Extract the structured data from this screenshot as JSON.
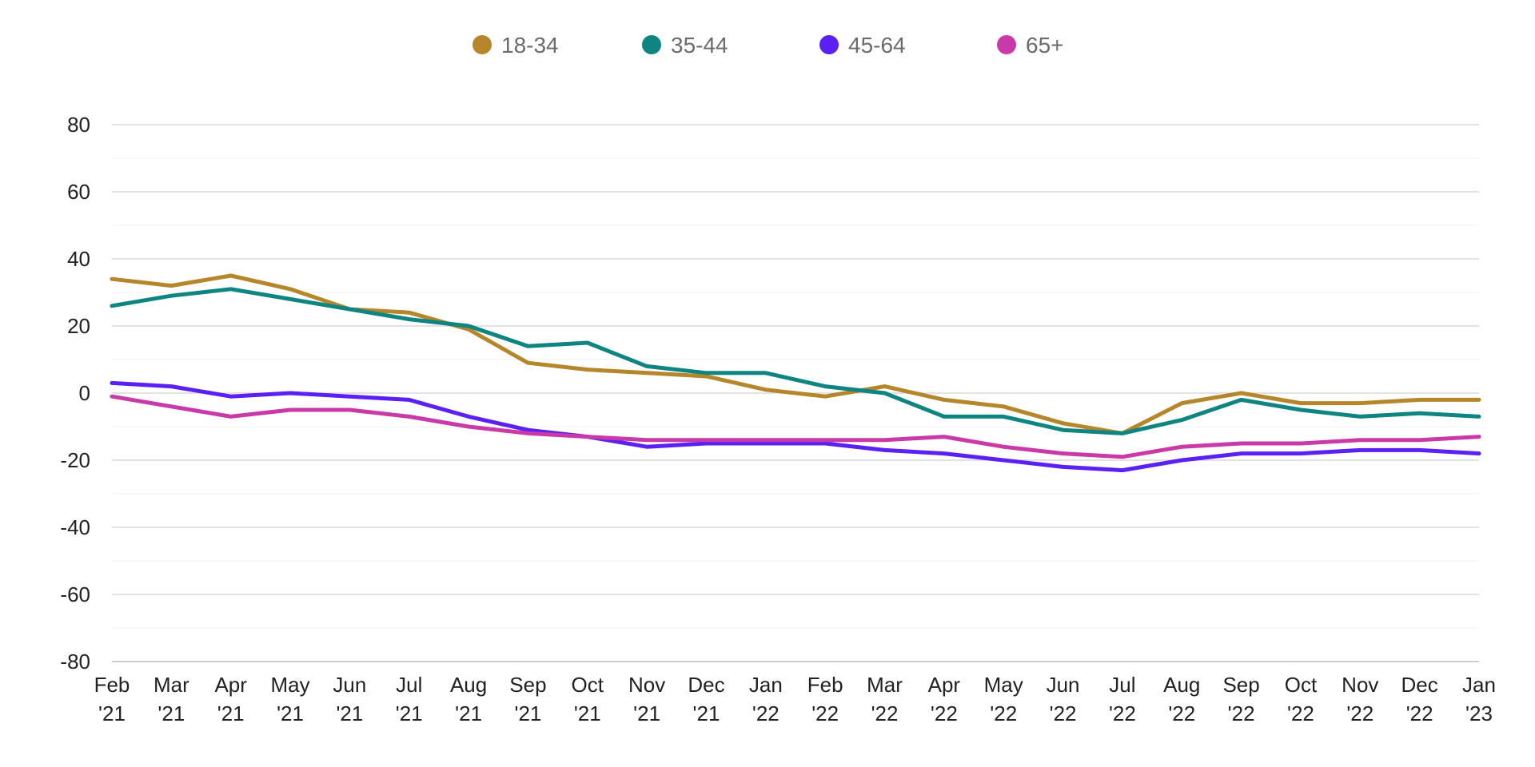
{
  "chart_data": {
    "type": "line",
    "x": [
      "Feb '21",
      "Mar '21",
      "Apr '21",
      "May '21",
      "Jun '21",
      "Jul '21",
      "Aug '21",
      "Sep '21",
      "Oct '21",
      "Nov '21",
      "Dec '21",
      "Jan '22",
      "Feb '22",
      "Mar '22",
      "Apr '22",
      "May '22",
      "Jun '22",
      "Jul '22",
      "Aug '22",
      "Sep '22",
      "Oct '22",
      "Nov '22",
      "Dec '22",
      "Jan '23"
    ],
    "x_tick_labels": [
      [
        "Feb",
        "'21"
      ],
      [
        "Mar",
        "'21"
      ],
      [
        "Apr",
        "'21"
      ],
      [
        "May",
        "'21"
      ],
      [
        "Jun",
        "'21"
      ],
      [
        "Jul",
        "'21"
      ],
      [
        "Aug",
        "'21"
      ],
      [
        "Sep",
        "'21"
      ],
      [
        "Oct",
        "'21"
      ],
      [
        "Nov",
        "'21"
      ],
      [
        "Dec",
        "'21"
      ],
      [
        "Jan",
        "'22"
      ],
      [
        "Feb",
        "'22"
      ],
      [
        "Mar",
        "'22"
      ],
      [
        "Apr",
        "'22"
      ],
      [
        "May",
        "'22"
      ],
      [
        "Jun",
        "'22"
      ],
      [
        "Jul",
        "'22"
      ],
      [
        "Aug",
        "'22"
      ],
      [
        "Sep",
        "'22"
      ],
      [
        "Oct",
        "'22"
      ],
      [
        "Nov",
        "'22"
      ],
      [
        "Dec",
        "'22"
      ],
      [
        "Jan",
        "'23"
      ]
    ],
    "y_ticks": [
      80,
      60,
      40,
      20,
      0,
      -20,
      -40,
      -60,
      -80
    ],
    "y_tick_labels": [
      "80",
      "60",
      "40",
      "20",
      "0",
      "-20",
      "-40",
      "-60",
      "-80"
    ],
    "ylim": [
      -80,
      80
    ],
    "grid": true,
    "legend_position": "top-center",
    "series": [
      {
        "name": "18-34",
        "color": "#B5862A",
        "values": [
          34,
          32,
          35,
          31,
          25,
          24,
          19,
          9,
          7,
          6,
          5,
          1,
          -1,
          2,
          -2,
          -4,
          -9,
          -12,
          -3,
          0,
          -3,
          -3,
          -2,
          -2
        ]
      },
      {
        "name": "35-44",
        "color": "#0E8580",
        "values": [
          26,
          29,
          31,
          28,
          25,
          22,
          20,
          14,
          15,
          8,
          6,
          6,
          2,
          0,
          -7,
          -7,
          -11,
          -12,
          -8,
          -2,
          -5,
          -7,
          -6,
          -7
        ]
      },
      {
        "name": "45-64",
        "color": "#5A20F5",
        "values": [
          3,
          2,
          -1,
          0,
          -1,
          -2,
          -7,
          -11,
          -13,
          -16,
          -15,
          -15,
          -15,
          -17,
          -18,
          -20,
          -22,
          -23,
          -20,
          -18,
          -18,
          -17,
          -17,
          -18
        ]
      },
      {
        "name": "65+",
        "color": "#C93AA8",
        "values": [
          -1,
          -4,
          -7,
          -5,
          -5,
          -7,
          -10,
          -12,
          -13,
          -14,
          -14,
          -14,
          -14,
          -14,
          -13,
          -16,
          -18,
          -19,
          -16,
          -15,
          -15,
          -14,
          -14,
          -13
        ]
      }
    ]
  }
}
